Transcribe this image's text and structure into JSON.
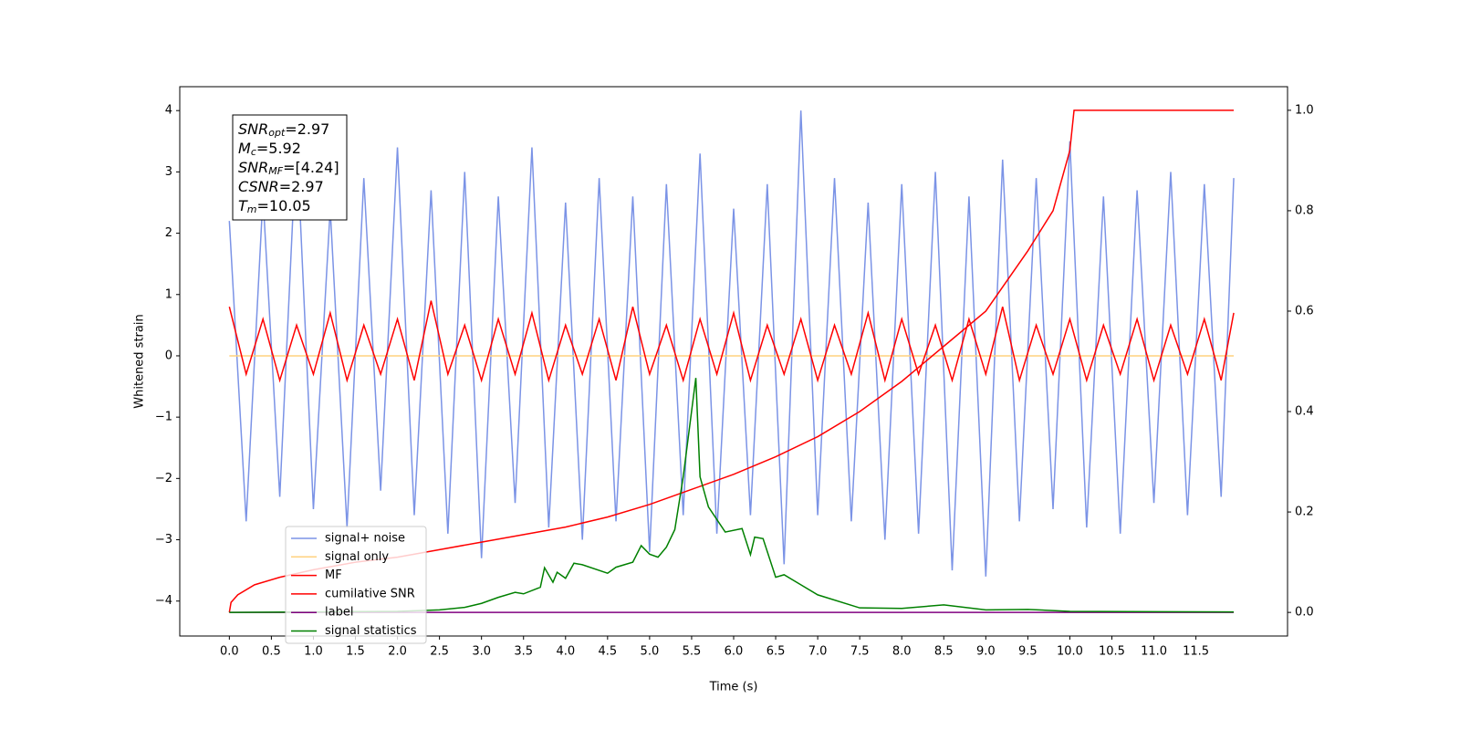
{
  "chart_data": {
    "type": "line",
    "xlabel": "Time (s)",
    "ylabel": "Whitened strain",
    "xlim": [
      -0.59,
      12.59
    ],
    "ylim": [
      -4.57,
      4.39
    ],
    "y2lim": [
      -0.047,
      1.047
    ],
    "xticks": [
      {
        "value": 0,
        "label": "0.0"
      },
      0.5,
      {
        "value": 1,
        "label": "1.0"
      },
      1.5,
      {
        "value": 2,
        "label": "2.0"
      },
      2.5,
      {
        "value": 3,
        "label": "3.0"
      },
      3.5,
      {
        "value": 4,
        "label": "4.0"
      },
      4.5,
      {
        "value": 5,
        "label": "5.0"
      },
      5.5,
      {
        "value": 6,
        "label": "6.0"
      },
      6.5,
      {
        "value": 7,
        "label": "7.0"
      },
      7.5,
      {
        "value": 8,
        "label": "8.0"
      },
      8.5,
      {
        "value": 9,
        "label": "9.0"
      },
      9.5,
      {
        "value": 10,
        "label": "10.0"
      },
      10.5,
      {
        "value": 11,
        "label": "11.0"
      },
      11.5
    ],
    "yticks": [
      {
        "value": -4,
        "label": "−4"
      },
      {
        "value": -3,
        "label": "−3"
      },
      {
        "value": -2,
        "label": "−2"
      },
      {
        "value": -1,
        "label": "−1"
      },
      0,
      1,
      2,
      3,
      4
    ],
    "y2ticks": [
      {
        "value": 0,
        "label": "0.0"
      },
      0.2,
      0.4,
      0.6,
      0.8,
      {
        "value": 1,
        "label": "1.0"
      }
    ],
    "grid": false,
    "legend_loc": "lower left",
    "annotation": [
      {
        "text": "SNR",
        "sub": "opt",
        "rest": "=2.97"
      },
      {
        "text": "M",
        "sub": "c",
        "rest": "=5.92"
      },
      {
        "text": "SNR",
        "sub": "MF",
        "rest": "=[4.24]"
      },
      {
        "text": "CSNR",
        "rest": "=2.97"
      },
      {
        "text": "T",
        "sub": "m",
        "rest": "=10.05"
      }
    ],
    "series": [
      {
        "name": "signal+ noise",
        "color": "#7b93e6",
        "x": [
          0,
          0.2,
          0.4,
          0.6,
          0.8,
          1,
          1.2,
          1.4,
          1.6,
          1.8,
          2,
          2.2,
          2.4,
          2.6,
          2.8,
          3,
          3.2,
          3.4,
          3.6,
          3.8,
          4,
          4.2,
          4.4,
          4.6,
          4.8,
          5,
          5.2,
          5.4,
          5.6,
          5.8,
          6,
          6.2,
          6.4,
          6.6,
          6.8,
          7,
          7.2,
          7.4,
          7.6,
          7.8,
          8,
          8.2,
          8.4,
          8.6,
          8.8,
          9,
          9.2,
          9.4,
          9.6,
          9.8,
          10,
          10.2,
          10.4,
          10.6,
          10.8,
          11,
          11.2,
          11.4,
          11.6,
          11.8,
          11.95
        ],
        "values": [
          2.2,
          -2.7,
          2.6,
          -2.3,
          3.6,
          -2.5,
          2.4,
          -2.8,
          2.9,
          -2.2,
          3.4,
          -2.6,
          2.7,
          -2.9,
          3.0,
          -3.3,
          2.6,
          -2.4,
          3.4,
          -2.8,
          2.5,
          -3.0,
          2.9,
          -2.7,
          2.6,
          -3.2,
          2.8,
          -2.6,
          3.3,
          -2.9,
          2.4,
          -2.6,
          2.8,
          -3.4,
          4.0,
          -2.6,
          2.9,
          -2.7,
          2.5,
          -3.0,
          2.8,
          -2.9,
          3.0,
          -3.5,
          2.6,
          -3.6,
          3.2,
          -2.7,
          2.9,
          -2.5,
          3.5,
          -2.8,
          2.6,
          -2.9,
          2.7,
          -2.4,
          3.0,
          -2.6,
          2.8,
          -2.3,
          2.9
        ]
      },
      {
        "name": "signal only",
        "color": "#ffd27f",
        "x": [
          0,
          11.95
        ],
        "values": [
          0,
          0
        ]
      },
      {
        "name": "MF",
        "color": "#ff0000",
        "x": [
          0,
          0.2,
          0.4,
          0.6,
          0.8,
          1,
          1.2,
          1.4,
          1.6,
          1.8,
          2,
          2.2,
          2.4,
          2.6,
          2.8,
          3,
          3.2,
          3.4,
          3.6,
          3.8,
          4,
          4.2,
          4.4,
          4.6,
          4.8,
          5,
          5.2,
          5.4,
          5.6,
          5.8,
          6,
          6.2,
          6.4,
          6.6,
          6.8,
          7,
          7.2,
          7.4,
          7.6,
          7.8,
          8,
          8.2,
          8.4,
          8.6,
          8.8,
          9,
          9.2,
          9.4,
          9.6,
          9.8,
          10,
          10.2,
          10.4,
          10.6,
          10.8,
          11,
          11.2,
          11.4,
          11.6,
          11.8,
          11.95
        ],
        "values": [
          0.8,
          -0.3,
          0.6,
          -0.4,
          0.5,
          -0.3,
          0.7,
          -0.4,
          0.5,
          -0.3,
          0.6,
          -0.4,
          0.9,
          -0.3,
          0.5,
          -0.4,
          0.6,
          -0.3,
          0.7,
          -0.4,
          0.5,
          -0.3,
          0.6,
          -0.4,
          0.8,
          -0.3,
          0.5,
          -0.4,
          0.6,
          -0.3,
          0.7,
          -0.4,
          0.5,
          -0.3,
          0.6,
          -0.4,
          0.5,
          -0.3,
          0.7,
          -0.4,
          0.6,
          -0.3,
          0.5,
          -0.4,
          0.6,
          -0.3,
          0.8,
          -0.4,
          0.5,
          -0.3,
          0.6,
          -0.4,
          0.5,
          -0.3,
          0.6,
          -0.4,
          0.5,
          -0.3,
          0.6,
          -0.4,
          0.7
        ]
      },
      {
        "name": "cumilative SNR",
        "color": "#ff0000",
        "axis": "y2",
        "x": [
          0,
          0.02,
          0.1,
          0.3,
          0.6,
          1,
          1.5,
          2,
          2.5,
          3,
          3.5,
          4,
          4.5,
          5,
          5.5,
          6,
          6.5,
          7,
          7.5,
          8,
          8.5,
          9,
          9.5,
          9.8,
          10,
          10.05,
          11.95
        ],
        "values": [
          0,
          0.02,
          0.035,
          0.055,
          0.07,
          0.085,
          0.1,
          0.11,
          0.125,
          0.14,
          0.155,
          0.17,
          0.19,
          0.215,
          0.245,
          0.275,
          0.31,
          0.35,
          0.4,
          0.46,
          0.53,
          0.6,
          0.72,
          0.8,
          0.92,
          1,
          1
        ]
      },
      {
        "name": "label",
        "color": "#800080",
        "axis": "y2",
        "x": [
          0,
          11.95
        ],
        "values": [
          0,
          0
        ]
      },
      {
        "name": "signal statistics",
        "color": "#008000",
        "axis": "y2",
        "x": [
          0,
          1,
          2,
          2.5,
          2.8,
          3,
          3.2,
          3.4,
          3.5,
          3.7,
          3.75,
          3.85,
          3.9,
          4,
          4.1,
          4.2,
          4.5,
          4.6,
          4.8,
          4.9,
          5,
          5.1,
          5.2,
          5.3,
          5.4,
          5.55,
          5.6,
          5.7,
          5.9,
          6.1,
          6.2,
          6.25,
          6.35,
          6.5,
          6.6,
          6.7,
          6.8,
          7,
          7.5,
          8,
          8.5,
          9,
          9.5,
          10,
          11.95
        ],
        "values": [
          0,
          0.001,
          0.002,
          0.005,
          0.01,
          0.018,
          0.03,
          0.04,
          0.037,
          0.05,
          0.089,
          0.06,
          0.08,
          0.068,
          0.098,
          0.095,
          0.078,
          0.09,
          0.1,
          0.133,
          0.116,
          0.11,
          0.13,
          0.165,
          0.27,
          0.467,
          0.27,
          0.21,
          0.16,
          0.167,
          0.115,
          0.15,
          0.147,
          0.07,
          0.075,
          0.065,
          0.055,
          0.035,
          0.009,
          0.008,
          0.015,
          0.005,
          0.006,
          0.002,
          0.001
        ]
      }
    ]
  }
}
